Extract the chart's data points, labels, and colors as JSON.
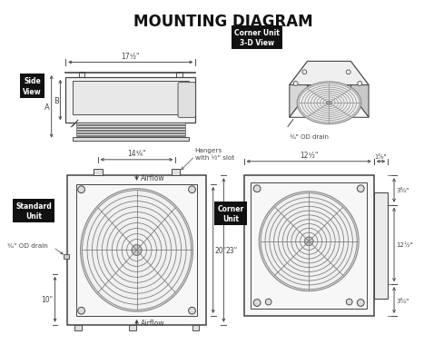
{
  "title": "MOUNTING DIAGRAM",
  "bg_color": "#ffffff",
  "lc": "#444444",
  "dims": {
    "side_width": "17¹⁄₂\"",
    "side_A": "A",
    "side_B": "B",
    "std_width": "14³⁄₄\"",
    "std_height20": "20\"",
    "std_height23": "23\"",
    "std_bottom": "10\"",
    "hangers": "Hangers\nwith ½\" slot",
    "drain_38_std": "⅜\" OD drain",
    "corner_width": "12¹⁄₂\"",
    "corner_side": "1³⁄₈\"",
    "corner_h1": "3³⁄₄\"",
    "corner_h2": "12¹⁄₂\"",
    "corner_h3": "3³⁄₄\"",
    "airflow": "Airflow",
    "drain_3d": "⅜\" OD drain",
    "label_side": "Side\nView",
    "label_corner3d": "Corner Unit\n3-D View",
    "label_standard": "Standard\nUnit",
    "label_corner": "Corner\nUnit"
  }
}
